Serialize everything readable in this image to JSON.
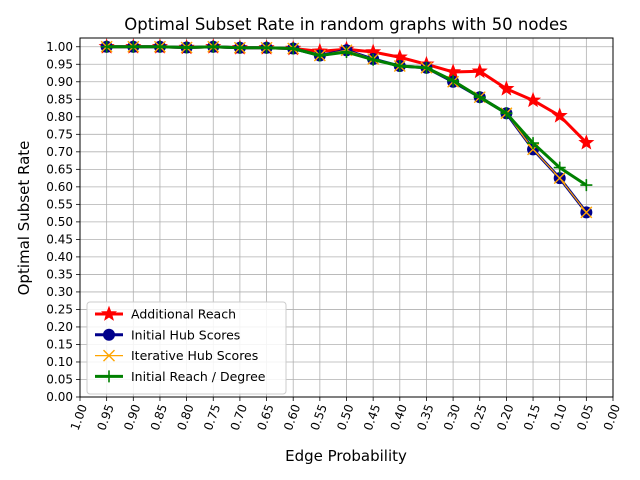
{
  "chart_data": {
    "type": "line",
    "title": "Optimal Subset Rate in random graphs with 50 nodes",
    "xlabel": "Edge Probability",
    "ylabel": "Optimal Subset Rate",
    "x": [
      0.95,
      0.9,
      0.85,
      0.8,
      0.75,
      0.7,
      0.65,
      0.6,
      0.55,
      0.5,
      0.45,
      0.4,
      0.35,
      0.3,
      0.25,
      0.2,
      0.15,
      0.1,
      0.05
    ],
    "xlim": [
      1.0,
      0.0
    ],
    "ylim": [
      0.0,
      1.025
    ],
    "xticks": [
      "1.00",
      "0.95",
      "0.90",
      "0.85",
      "0.80",
      "0.75",
      "0.70",
      "0.65",
      "0.60",
      "0.55",
      "0.50",
      "0.45",
      "0.40",
      "0.35",
      "0.30",
      "0.25",
      "0.20",
      "0.15",
      "0.10",
      "0.05",
      "0.00"
    ],
    "yticks": [
      "0.00",
      "0.05",
      "0.10",
      "0.15",
      "0.20",
      "0.25",
      "0.30",
      "0.35",
      "0.40",
      "0.45",
      "0.50",
      "0.55",
      "0.60",
      "0.65",
      "0.70",
      "0.75",
      "0.80",
      "0.85",
      "0.90",
      "0.95",
      "1.00"
    ],
    "grid": true,
    "legend_position": "lower-left",
    "series": [
      {
        "name": "Additional Reach",
        "color": "#ff0000",
        "marker": "star",
        "values": [
          1.0,
          1.0,
          1.0,
          0.998,
          1.0,
          0.997,
          0.997,
          0.995,
          0.987,
          0.993,
          0.985,
          0.97,
          0.95,
          0.928,
          0.93,
          0.88,
          0.847,
          0.803,
          0.726
        ]
      },
      {
        "name": "Initial Hub Scores",
        "color": "#00008b",
        "marker": "circle",
        "values": [
          1.0,
          1.0,
          1.0,
          0.998,
          1.0,
          0.997,
          0.997,
          0.995,
          0.975,
          0.99,
          0.965,
          0.945,
          0.94,
          0.9,
          0.856,
          0.81,
          0.707,
          0.625,
          0.527
        ]
      },
      {
        "name": "Iterative Hub Scores",
        "color": "#ffa500",
        "marker": "x",
        "values": [
          1.0,
          1.0,
          1.0,
          0.998,
          1.0,
          0.997,
          0.997,
          0.995,
          0.975,
          0.99,
          0.965,
          0.945,
          0.94,
          0.9,
          0.856,
          0.81,
          0.707,
          0.625,
          0.527
        ]
      },
      {
        "name": "Initial Reach / Degree",
        "color": "#008000",
        "marker": "plus",
        "values": [
          1.0,
          1.0,
          1.0,
          0.998,
          1.0,
          0.997,
          0.997,
          0.995,
          0.975,
          0.985,
          0.963,
          0.945,
          0.94,
          0.903,
          0.856,
          0.81,
          0.725,
          0.655,
          0.605
        ]
      }
    ]
  }
}
